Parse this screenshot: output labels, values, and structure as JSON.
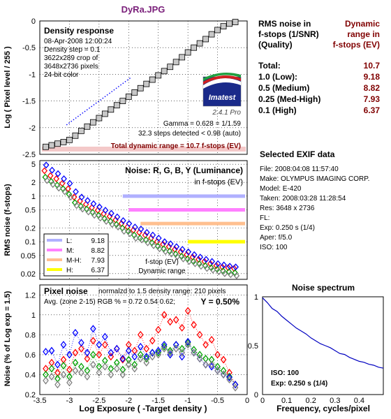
{
  "file_title": "DyRa.JPG",
  "colors": {
    "title": "#7a1f7a",
    "dark_red": "#800000",
    "blue": "#0000ff",
    "red": "#ff0000",
    "green": "#00a000",
    "gray": "#808080",
    "spectrum": "#0000c0"
  },
  "density": {
    "heading": "Density response",
    "info": [
      "08-Apr-2008 12:00:24",
      "Density step = 0.1",
      "3622x289 crop of",
      "3648x2736 pixels",
      "24-bit color"
    ],
    "logo_text": "Imatest",
    "version": "2.4.1  Pro",
    "gamma": "Gamma = 0.628 = 1/1.59",
    "steps": "32.3 steps detected < 0.98 (auto)",
    "total": "Total dynamic range = 10.7 f-stops (EV)",
    "ylabel": "Log ( Pixel level / 255 )"
  },
  "rms_table": {
    "header_left": [
      "RMS noise in",
      "f-stops (1/SNR)",
      "(Quality)"
    ],
    "header_right": [
      "Dynamic",
      "range in",
      "f-stops (EV)"
    ],
    "rows": [
      {
        "label": "Total:",
        "value": "10.7"
      },
      {
        "label": "1.0   (Low):",
        "value": "9.18"
      },
      {
        "label": "0.5   (Medium)",
        "value": "8.82"
      },
      {
        "label": "0.25 (Med-High)",
        "value": "7.93"
      },
      {
        "label": "0.1   (High)",
        "value": "6.37"
      }
    ]
  },
  "noise_panel": {
    "heading": "Noise: R, G, B, Y (Luminance)",
    "sub": "in f-stops (EV)",
    "ylabel": "RMS noise (f-stops)",
    "legend": [
      {
        "key": "L:",
        "value": "9.18",
        "color": "#b0b0ff"
      },
      {
        "key": "M:",
        "value": "8.82",
        "color": "#ff80ff"
      },
      {
        "key": "M-H:",
        "value": "7.93",
        "color": "#ffc090"
      },
      {
        "key": "H:",
        "value": "6.37",
        "color": "#ffff00"
      }
    ],
    "note1": "f-stop (EV)",
    "note2": "Dynamic range"
  },
  "pixel_panel": {
    "heading": "Pixel noise",
    "norm": "normalzd to 1.5 density range: 210 pixels",
    "avg": "Avg. (zone 2-15) RGB % = 0.72  0.54  0.62;",
    "y": "Y = 0.50%",
    "ylabel": "Noise (% of Log exp = 1.5)",
    "xlabel": "Log Exposure ( -Target density )"
  },
  "exif": {
    "heading": "Selected EXIF data",
    "rows": [
      "File:  2008:04:08 11:57:40",
      "Make:  OLYMPUS IMAGING CORP.",
      "Model: E-420",
      "Taken: 2008:03:28 11:28:54",
      "Res:   3648 x 2736",
      "FL:",
      "Exp:   0.250 s  (1/4)",
      "Aper:  f/5.0",
      "ISO:   100"
    ]
  },
  "spectrum": {
    "heading": "Noise spectrum",
    "iso": "ISO:  100",
    "exp": "Exp:  0.250 s  (1/4)",
    "xlabel": "Frequency, cycles/pixel"
  },
  "chart_data": [
    {
      "type": "line",
      "title": "Density response",
      "ylabel": "Log ( Pixel level / 255 )",
      "xlim": [
        -3.5,
        0
      ],
      "ylim": [
        -2.5,
        0
      ],
      "yticks": [
        "0",
        "-0.5",
        "-1",
        "-1.5",
        "-2",
        "-2.5"
      ],
      "series": [
        {
          "x": [
            -3.4,
            -3.3,
            -3.2,
            -3.1,
            -3.0,
            -2.9,
            -2.8,
            -2.7,
            -2.6,
            -2.5,
            -2.4,
            -2.3,
            -2.2,
            -2.1,
            -2.0,
            -1.9,
            -1.8,
            -1.7,
            -1.6,
            -1.5,
            -1.4,
            -1.3,
            -1.2,
            -1.1,
            -1.0,
            -0.9,
            -0.8,
            -0.7,
            -0.6,
            -0.5,
            -0.4,
            -0.3,
            -0.2
          ],
          "y": [
            -2.36,
            -2.33,
            -2.3,
            -2.27,
            -2.23,
            -2.15,
            -2.06,
            -1.98,
            -1.9,
            -1.82,
            -1.74,
            -1.66,
            -1.58,
            -1.5,
            -1.42,
            -1.34,
            -1.26,
            -1.18,
            -1.1,
            -1.02,
            -0.94,
            -0.86,
            -0.77,
            -0.68,
            -0.59,
            -0.5,
            -0.42,
            -0.34,
            -0.25,
            -0.17,
            -0.1,
            -0.05,
            -0.02
          ]
        }
      ]
    },
    {
      "type": "scatter",
      "title": "Noise: R, G, B, Y (Luminance)",
      "ylabel": "RMS noise (f-stops)",
      "yscale": "log",
      "ylim": [
        0.015,
        6
      ],
      "yticks": [
        "5",
        "2",
        "1",
        "0.5",
        "0.2",
        "0.1",
        "0.05",
        "0.02"
      ],
      "x": [
        -3.4,
        -3.3,
        -3.2,
        -3.1,
        -3.0,
        -2.9,
        -2.8,
        -2.7,
        -2.6,
        -2.5,
        -2.4,
        -2.3,
        -2.2,
        -2.1,
        -2.0,
        -1.9,
        -1.8,
        -1.7,
        -1.6,
        -1.5,
        -1.4,
        -1.3,
        -1.2,
        -1.1,
        -1.0,
        -0.9,
        -0.8,
        -0.7,
        -0.6,
        -0.5,
        -0.4,
        -0.3,
        -0.2
      ],
      "series": [
        {
          "name": "R",
          "y": [
            3.6,
            2.8,
            2.4,
            1.9,
            1.45,
            0.95,
            0.78,
            0.66,
            0.56,
            0.49,
            0.41,
            0.36,
            0.3,
            0.25,
            0.21,
            0.18,
            0.16,
            0.14,
            0.12,
            0.1,
            0.088,
            0.078,
            0.068,
            0.06,
            0.052,
            0.046,
            0.041,
            0.037,
            0.033,
            0.03,
            0.028,
            0.027,
            0.026
          ]
        },
        {
          "name": "G",
          "y": [
            2.6,
            2.1,
            1.75,
            1.45,
            1.1,
            0.72,
            0.6,
            0.52,
            0.44,
            0.38,
            0.32,
            0.28,
            0.24,
            0.2,
            0.17,
            0.14,
            0.12,
            0.11,
            0.095,
            0.08,
            0.07,
            0.062,
            0.054,
            0.048,
            0.042,
            0.037,
            0.033,
            0.03,
            0.027,
            0.025,
            0.023,
            0.022,
            0.021
          ]
        },
        {
          "name": "B",
          "y": [
            4.8,
            3.7,
            3.1,
            2.4,
            1.9,
            1.25,
            0.95,
            0.8,
            0.68,
            0.58,
            0.49,
            0.42,
            0.35,
            0.29,
            0.25,
            0.21,
            0.19,
            0.16,
            0.14,
            0.12,
            0.1,
            0.09,
            0.078,
            0.068,
            0.06,
            0.052,
            0.046,
            0.041,
            0.037,
            0.033,
            0.031,
            0.029,
            0.028
          ]
        },
        {
          "name": "Y",
          "y": [
            2.2,
            1.8,
            1.5,
            1.25,
            0.95,
            0.62,
            0.52,
            0.45,
            0.38,
            0.33,
            0.28,
            0.24,
            0.21,
            0.17,
            0.15,
            0.12,
            0.11,
            0.095,
            0.082,
            0.07,
            0.061,
            0.054,
            0.047,
            0.042,
            0.037,
            0.033,
            0.029,
            0.026,
            0.024,
            0.022,
            0.02,
            0.019,
            0.018
          ]
        }
      ],
      "thresholds": [
        1.0,
        0.5,
        0.25,
        0.1
      ]
    },
    {
      "type": "scatter",
      "title": "Pixel noise",
      "xlabel": "Log Exposure ( -Target density )",
      "ylabel": "Noise (% of Log exp = 1.5)",
      "xlim": [
        -3.5,
        0
      ],
      "ylim": [
        0.2,
        1.3
      ],
      "xticks": [
        "-3.5",
        "-3",
        "-2.5",
        "-2",
        "-1.5",
        "-1",
        "-0.5",
        "0"
      ],
      "yticks": [
        "1.2",
        "1",
        "0.8",
        "0.6",
        "0.4",
        "0.2"
      ],
      "x": [
        -3.4,
        -3.3,
        -3.2,
        -3.1,
        -3.0,
        -2.9,
        -2.8,
        -2.7,
        -2.6,
        -2.5,
        -2.4,
        -2.3,
        -2.2,
        -2.1,
        -2.0,
        -1.9,
        -1.8,
        -1.7,
        -1.6,
        -1.5,
        -1.4,
        -1.3,
        -1.2,
        -1.1,
        -1.0,
        -0.9,
        -0.8,
        -0.7,
        -0.6,
        -0.5,
        -0.4,
        -0.3,
        -0.2
      ],
      "series": [
        {
          "name": "R",
          "y": [
            0.46,
            0.52,
            0.42,
            0.55,
            0.45,
            0.62,
            0.66,
            0.56,
            0.74,
            0.6,
            0.7,
            0.58,
            0.66,
            0.55,
            0.7,
            0.64,
            0.8,
            0.66,
            0.74,
            0.85,
            1.0,
            0.93,
            0.95,
            0.87,
            1.04,
            0.9,
            0.8,
            0.7,
            0.75,
            0.6,
            0.55,
            0.42,
            0.3
          ]
        },
        {
          "name": "G",
          "y": [
            0.4,
            0.46,
            0.36,
            0.49,
            0.38,
            0.52,
            0.48,
            0.44,
            0.6,
            0.48,
            0.54,
            0.46,
            0.52,
            0.45,
            0.55,
            0.5,
            0.6,
            0.56,
            0.62,
            0.62,
            0.68,
            0.64,
            0.7,
            0.66,
            0.72,
            0.65,
            0.6,
            0.56,
            0.55,
            0.48,
            0.44,
            0.38,
            0.3
          ]
        },
        {
          "name": "B",
          "y": [
            0.63,
            0.64,
            0.5,
            0.7,
            0.6,
            0.82,
            0.72,
            0.62,
            0.86,
            0.7,
            0.78,
            0.62,
            0.66,
            0.56,
            0.64,
            0.58,
            0.68,
            0.58,
            0.62,
            0.64,
            0.7,
            0.6,
            0.7,
            0.58,
            0.73,
            0.62,
            0.56,
            0.5,
            0.48,
            0.44,
            0.4,
            0.37,
            0.3
          ]
        },
        {
          "name": "Y",
          "y": [
            0.34,
            0.38,
            0.3,
            0.4,
            0.32,
            0.44,
            0.42,
            0.38,
            0.5,
            0.42,
            0.48,
            0.4,
            0.46,
            0.4,
            0.5,
            0.46,
            0.56,
            0.52,
            0.58,
            0.6,
            0.66,
            0.62,
            0.66,
            0.62,
            0.7,
            0.62,
            0.56,
            0.5,
            0.5,
            0.44,
            0.4,
            0.35,
            0.27
          ]
        }
      ]
    },
    {
      "type": "line",
      "title": "Noise spectrum",
      "xlabel": "Frequency, cycles/pixel",
      "xlim": [
        0,
        0.5
      ],
      "ylim": [
        0,
        1
      ],
      "xticks": [
        "0",
        "0.1",
        "0.2",
        "0.3",
        "0.4"
      ],
      "yticks": [
        "1",
        "0.5",
        "0"
      ],
      "x": [
        0.0,
        0.02,
        0.04,
        0.06,
        0.08,
        0.1,
        0.12,
        0.14,
        0.16,
        0.18,
        0.2,
        0.22,
        0.24,
        0.26,
        0.28,
        0.3,
        0.32,
        0.34,
        0.36,
        0.38,
        0.4,
        0.42,
        0.44,
        0.46,
        0.48,
        0.5
      ],
      "y": [
        0.99,
        0.94,
        0.88,
        0.85,
        0.8,
        0.76,
        0.72,
        0.68,
        0.65,
        0.62,
        0.58,
        0.55,
        0.52,
        0.5,
        0.48,
        0.45,
        0.42,
        0.41,
        0.38,
        0.36,
        0.34,
        0.33,
        0.31,
        0.3,
        0.28,
        0.27
      ]
    }
  ]
}
